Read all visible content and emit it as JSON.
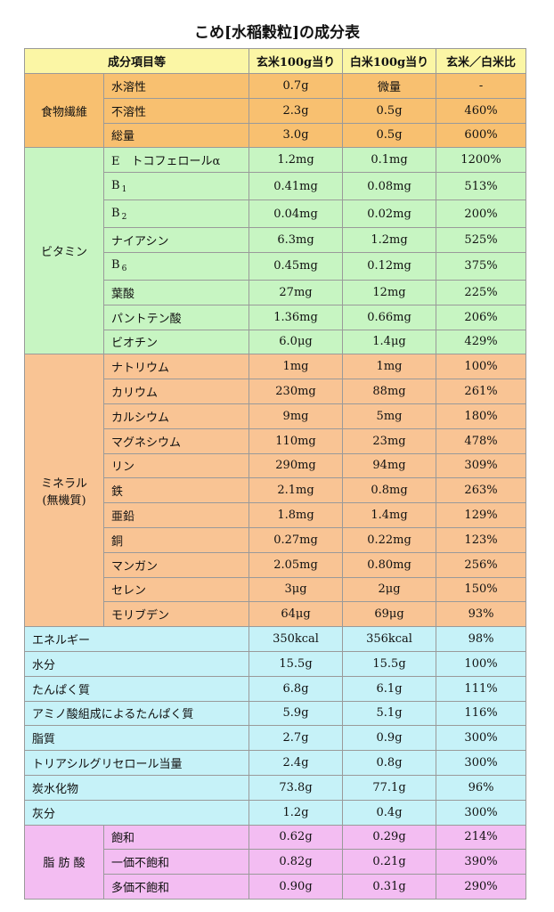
{
  "title": "こめ[水稲穀粒]の成分表",
  "headers": [
    "成分項目等",
    "玄米100g当り",
    "白米100g当り",
    "玄米／白米比"
  ],
  "colors": {
    "header": "#fbf6a5",
    "fiber": "#f8c070",
    "vitamin": "#c7f5c2",
    "mineral": "#f9c494",
    "general": "#c6f2f8",
    "fatty_acid": "#f3bdf2"
  },
  "groups": {
    "fiber": {
      "label": "食物繊維",
      "rows": [
        {
          "name": "水溶性",
          "brown": "0.7g",
          "white": "微量",
          "ratio": "-"
        },
        {
          "name": "不溶性",
          "brown": "2.3g",
          "white": "0.5g",
          "ratio": "460%"
        },
        {
          "name": "総量",
          "brown": "3.0g",
          "white": "0.5g",
          "ratio": "600%"
        }
      ]
    },
    "vitamin": {
      "label": "ビタミン",
      "rows": [
        {
          "name": "E　トコフェロールα",
          "brown": "1.2mg",
          "white": "0.1mg",
          "ratio": "1200%"
        },
        {
          "name": "B",
          "sub": "1",
          "brown": "0.41mg",
          "white": "0.08mg",
          "ratio": "513%"
        },
        {
          "name": "B",
          "sub": "2",
          "brown": "0.04mg",
          "white": "0.02mg",
          "ratio": "200%"
        },
        {
          "name": "ナイアシン",
          "brown": "6.3mg",
          "white": "1.2mg",
          "ratio": "525%"
        },
        {
          "name": "B",
          "sub": "6",
          "brown": "0.45mg",
          "white": "0.12mg",
          "ratio": "375%"
        },
        {
          "name": "葉酸",
          "brown": "27mg",
          "white": "12mg",
          "ratio": "225%"
        },
        {
          "name": "パントテン酸",
          "brown": "1.36mg",
          "white": "0.66mg",
          "ratio": "206%"
        },
        {
          "name": "ビオチン",
          "brown": "6.0μg",
          "white": "1.4μg",
          "ratio": "429%"
        }
      ]
    },
    "mineral": {
      "label": "ミネラル",
      "label2": "(無機質)",
      "rows": [
        {
          "name": "ナトリウム",
          "brown": "1mg",
          "white": "1mg",
          "ratio": "100%"
        },
        {
          "name": "カリウム",
          "brown": "230mg",
          "white": "88mg",
          "ratio": "261%"
        },
        {
          "name": "カルシウム",
          "brown": "9mg",
          "white": "5mg",
          "ratio": "180%"
        },
        {
          "name": "マグネシウム",
          "brown": "110mg",
          "white": "23mg",
          "ratio": "478%"
        },
        {
          "name": "リン",
          "brown": "290mg",
          "white": "94mg",
          "ratio": "309%"
        },
        {
          "name": "鉄",
          "brown": "2.1mg",
          "white": "0.8mg",
          "ratio": "263%"
        },
        {
          "name": "亜鉛",
          "brown": "1.8mg",
          "white": "1.4mg",
          "ratio": "129%"
        },
        {
          "name": "銅",
          "brown": "0.27mg",
          "white": "0.22mg",
          "ratio": "123%"
        },
        {
          "name": "マンガン",
          "brown": "2.05mg",
          "white": "0.80mg",
          "ratio": "256%"
        },
        {
          "name": "セレン",
          "brown": "3μg",
          "white": "2μg",
          "ratio": "150%"
        },
        {
          "name": "モリブデン",
          "brown": "64μg",
          "white": "69μg",
          "ratio": "93%"
        }
      ]
    },
    "general": {
      "rows": [
        {
          "name": "エネルギー",
          "brown": "350kcal",
          "white": "356kcal",
          "ratio": "98%"
        },
        {
          "name": "水分",
          "brown": "15.5g",
          "white": "15.5g",
          "ratio": "100%"
        },
        {
          "name": "たんぱく質",
          "brown": "6.8g",
          "white": "6.1g",
          "ratio": "111%"
        },
        {
          "name": "アミノ酸組成によるたんぱく質",
          "brown": "5.9g",
          "white": "5.1g",
          "ratio": "116%"
        },
        {
          "name": "脂質",
          "brown": "2.7g",
          "white": "0.9g",
          "ratio": "300%"
        },
        {
          "name": "トリアシルグリセロール当量",
          "brown": "2.4g",
          "white": "0.8g",
          "ratio": "300%"
        },
        {
          "name": "炭水化物",
          "brown": "73.8g",
          "white": "77.1g",
          "ratio": "96%"
        },
        {
          "name": "灰分",
          "brown": "1.2g",
          "white": "0.4g",
          "ratio": "300%"
        }
      ]
    },
    "fatty_acid": {
      "label": "脂 肪 酸",
      "rows": [
        {
          "name": "飽和",
          "brown": "0.62g",
          "white": "0.29g",
          "ratio": "214%"
        },
        {
          "name": "一価不飽和",
          "brown": "0.82g",
          "white": "0.21g",
          "ratio": "390%"
        },
        {
          "name": "多価不飽和",
          "brown": "0.90g",
          "white": "0.31g",
          "ratio": "290%"
        }
      ]
    }
  }
}
